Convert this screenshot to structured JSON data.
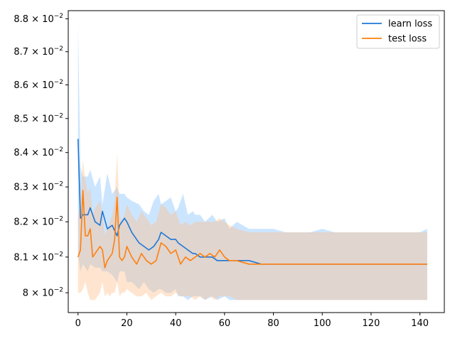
{
  "chart_data": {
    "type": "line",
    "title": "",
    "xlabel": "",
    "ylabel": "",
    "y_scale": "log",
    "xlim": [
      -4,
      150
    ],
    "ylim": [
      0.07945,
      0.08825
    ],
    "x_ticks": [
      0,
      20,
      40,
      60,
      80,
      100,
      120,
      140
    ],
    "x_tick_labels": [
      "0",
      "20",
      "40",
      "60",
      "80",
      "100",
      "120",
      "140"
    ],
    "y_ticks": [
      0.08,
      0.081,
      0.082,
      0.083,
      0.084,
      0.085,
      0.086,
      0.087,
      0.088
    ],
    "y_tick_labels": [
      {
        "mantissa": "",
        "exp": "-2"
      },
      {
        "mantissa": "8.1",
        "exp": "-2"
      },
      {
        "mantissa": "8.2",
        "exp": "-2"
      },
      {
        "mantissa": "8.3",
        "exp": "-2"
      },
      {
        "mantissa": "8.4",
        "exp": "-2"
      },
      {
        "mantissa": "8.5",
        "exp": "-2"
      },
      {
        "mantissa": "8.6",
        "exp": "-2"
      },
      {
        "mantissa": "8.7",
        "exp": "-2"
      },
      {
        "mantissa": "8.8",
        "exp": "-2"
      }
    ],
    "y_tick_first_prefix": "8",
    "grid": false,
    "legend_position": "top-right",
    "series": [
      {
        "name": "learn loss",
        "color": "#1f77d4",
        "band_color": "#7fbfff",
        "x": [
          0,
          1,
          2,
          4,
          5,
          7,
          9,
          10,
          12,
          14,
          16,
          17,
          19,
          20,
          22,
          25,
          27,
          29,
          31,
          33,
          34,
          36,
          38,
          40,
          41,
          43,
          45,
          47,
          48,
          50,
          52,
          55,
          57,
          60,
          62,
          65,
          70,
          75,
          80,
          85,
          90,
          95,
          100,
          105,
          110,
          115,
          120,
          125,
          130,
          135,
          140,
          143
        ],
        "y": [
          0.0844,
          0.0821,
          0.0822,
          0.0822,
          0.0824,
          0.082,
          0.0819,
          0.0823,
          0.0818,
          0.0819,
          0.0816,
          0.0819,
          0.0821,
          0.082,
          0.0817,
          0.0814,
          0.0813,
          0.0812,
          0.0813,
          0.0815,
          0.0817,
          0.0816,
          0.0815,
          0.0815,
          0.0814,
          0.0813,
          0.0812,
          0.0811,
          0.0811,
          0.081,
          0.081,
          0.081,
          0.0809,
          0.0809,
          0.0809,
          0.0809,
          0.0809,
          0.0808,
          0.0808,
          0.0808,
          0.0808,
          0.0808,
          0.0808,
          0.0808,
          0.0808,
          0.0808,
          0.0808,
          0.0808,
          0.0808,
          0.0808,
          0.0808,
          0.0808
        ],
        "lower": [
          0.0811,
          0.0806,
          0.0808,
          0.0806,
          0.0808,
          0.0807,
          0.0807,
          0.0806,
          0.0806,
          0.0805,
          0.0803,
          0.0806,
          0.0806,
          0.0803,
          0.0803,
          0.0801,
          0.0803,
          0.0801,
          0.08,
          0.0801,
          0.0801,
          0.08,
          0.08,
          0.0801,
          0.0799,
          0.0799,
          0.0798,
          0.0799,
          0.0799,
          0.0799,
          0.0798,
          0.0799,
          0.0798,
          0.0799,
          0.0798,
          0.0798,
          0.0798,
          0.0798,
          0.0798,
          0.0798,
          0.0798,
          0.0798,
          0.0798,
          0.0798,
          0.0798,
          0.0798,
          0.0798,
          0.0798,
          0.0798,
          0.0798,
          0.0798,
          0.0798
        ],
        "upper": [
          0.0878,
          0.0836,
          0.0833,
          0.0833,
          0.0835,
          0.083,
          0.0833,
          0.0825,
          0.0834,
          0.0828,
          0.083,
          0.0828,
          0.0828,
          0.0827,
          0.0826,
          0.0825,
          0.0823,
          0.0822,
          0.0826,
          0.0828,
          0.0825,
          0.0826,
          0.0827,
          0.0823,
          0.0824,
          0.0828,
          0.0822,
          0.0823,
          0.0822,
          0.0822,
          0.082,
          0.0822,
          0.082,
          0.0821,
          0.0818,
          0.082,
          0.0818,
          0.0818,
          0.0818,
          0.0817,
          0.0817,
          0.0817,
          0.0818,
          0.0817,
          0.0817,
          0.0817,
          0.0817,
          0.0817,
          0.0817,
          0.0817,
          0.0817,
          0.0818
        ]
      },
      {
        "name": "test loss",
        "color": "#ff7f0e",
        "band_color": "#ffbf86",
        "x": [
          0,
          1,
          2,
          3,
          4,
          5,
          6,
          7,
          8,
          9,
          10,
          11,
          12,
          13,
          14,
          15,
          16,
          17,
          18,
          19,
          20,
          22,
          24,
          26,
          28,
          30,
          32,
          34,
          36,
          38,
          40,
          42,
          44,
          46,
          48,
          50,
          52,
          54,
          56,
          58,
          60,
          62,
          65,
          70,
          75,
          80,
          85,
          90,
          95,
          100,
          105,
          110,
          115,
          120,
          125,
          130,
          135,
          140,
          143
        ],
        "y": [
          0.081,
          0.0812,
          0.0829,
          0.0816,
          0.0816,
          0.0818,
          0.081,
          0.0811,
          0.0812,
          0.0813,
          0.0812,
          0.0807,
          0.0809,
          0.081,
          0.0811,
          0.0815,
          0.0827,
          0.081,
          0.0809,
          0.081,
          0.0813,
          0.081,
          0.0808,
          0.0811,
          0.0809,
          0.0808,
          0.0809,
          0.0814,
          0.0813,
          0.0811,
          0.0812,
          0.0808,
          0.081,
          0.0809,
          0.081,
          0.0811,
          0.081,
          0.0811,
          0.081,
          0.0812,
          0.081,
          0.0809,
          0.0809,
          0.0808,
          0.0808,
          0.0808,
          0.0808,
          0.0808,
          0.0808,
          0.0808,
          0.0808,
          0.0808,
          0.0808,
          0.0808,
          0.0808,
          0.0808,
          0.0808,
          0.0808,
          0.0808
        ],
        "lower": [
          0.08,
          0.08,
          0.0801,
          0.0803,
          0.08,
          0.0798,
          0.0798,
          0.0798,
          0.0799,
          0.08,
          0.0803,
          0.0799,
          0.08,
          0.0799,
          0.08,
          0.08,
          0.0803,
          0.0799,
          0.08,
          0.08,
          0.0801,
          0.08,
          0.0799,
          0.0799,
          0.08,
          0.0798,
          0.0799,
          0.08,
          0.0799,
          0.0799,
          0.08,
          0.0799,
          0.0799,
          0.0799,
          0.0798,
          0.0799,
          0.0798,
          0.0799,
          0.0798,
          0.0799,
          0.0799,
          0.0799,
          0.0798,
          0.0798,
          0.0798,
          0.0798,
          0.0798,
          0.0798,
          0.0798,
          0.0798,
          0.0798,
          0.0798,
          0.0798,
          0.0798,
          0.0798,
          0.0798,
          0.0798,
          0.0798,
          0.0798
        ],
        "upper": [
          0.0822,
          0.0825,
          0.0838,
          0.0832,
          0.0828,
          0.083,
          0.0822,
          0.0824,
          0.0825,
          0.0826,
          0.0822,
          0.0816,
          0.0818,
          0.082,
          0.0822,
          0.0826,
          0.084,
          0.0822,
          0.082,
          0.0822,
          0.0825,
          0.0822,
          0.082,
          0.0823,
          0.0821,
          0.0819,
          0.082,
          0.0825,
          0.0824,
          0.0822,
          0.0823,
          0.0819,
          0.082,
          0.0819,
          0.082,
          0.082,
          0.082,
          0.082,
          0.082,
          0.0821,
          0.082,
          0.0819,
          0.0818,
          0.0817,
          0.0817,
          0.0817,
          0.0817,
          0.0817,
          0.0817,
          0.0817,
          0.0817,
          0.0817,
          0.0817,
          0.0817,
          0.0817,
          0.0817,
          0.0817,
          0.0817,
          0.0817
        ]
      }
    ]
  }
}
